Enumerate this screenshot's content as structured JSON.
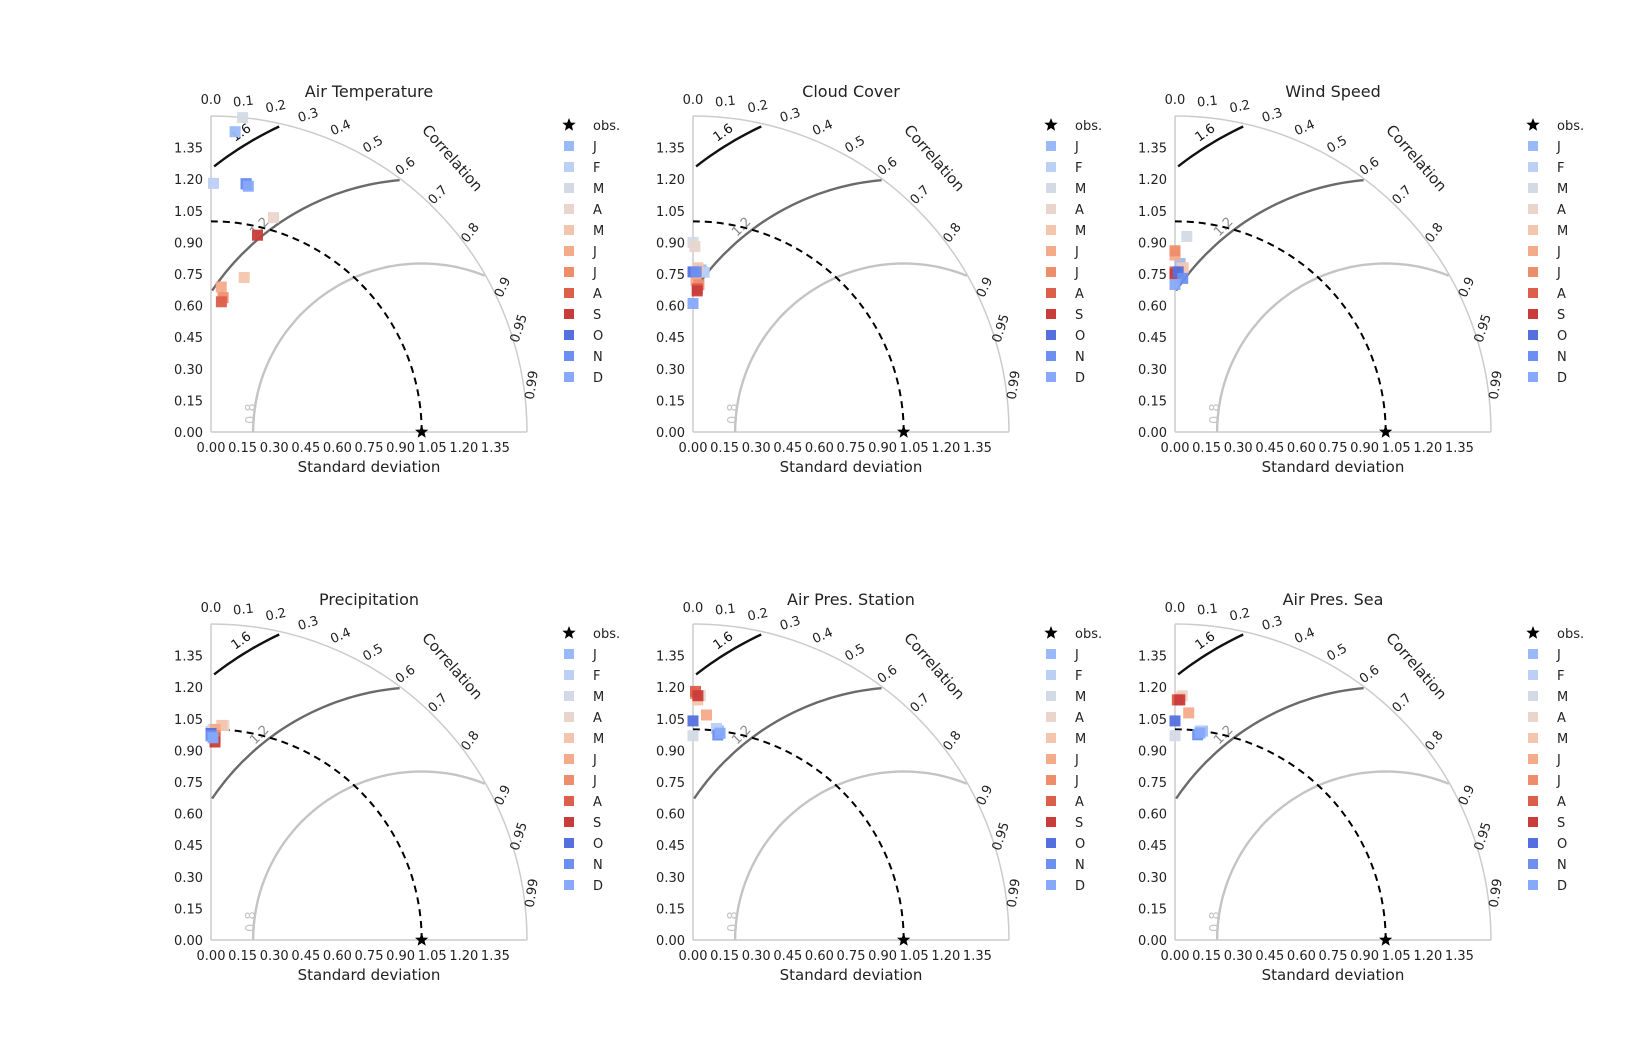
{
  "figure": {
    "axis_xlabel": "Standard deviation",
    "correlation_label": "Correlation",
    "std_ticks": [
      "0.00",
      "0.15",
      "0.30",
      "0.45",
      "0.60",
      "0.75",
      "0.90",
      "1.05",
      "1.20",
      "1.35"
    ],
    "correlation_ticks": [
      "0.0",
      "0.1",
      "0.2",
      "0.3",
      "0.4",
      "0.5",
      "0.6",
      "0.7",
      "0.8",
      "0.9",
      "0.95",
      "0.99"
    ],
    "rms_contour_labels": [
      "0.8",
      "1.2",
      "1.6"
    ],
    "legend": [
      {
        "label": "obs.",
        "marker": "star",
        "color": "#000000"
      },
      {
        "label": "J",
        "marker": "square",
        "color": "#9ab9f8"
      },
      {
        "label": "F",
        "marker": "square",
        "color": "#bcd0f5"
      },
      {
        "label": "M",
        "marker": "square",
        "color": "#d4dae5"
      },
      {
        "label": "A",
        "marker": "square",
        "color": "#ead5cc"
      },
      {
        "label": "M",
        "marker": "square",
        "color": "#f4c5ad"
      },
      {
        "label": "J",
        "marker": "square",
        "color": "#f4ab8a"
      },
      {
        "label": "J",
        "marker": "square",
        "color": "#ed8d6c"
      },
      {
        "label": "A",
        "marker": "square",
        "color": "#dc5f4b"
      },
      {
        "label": "S",
        "marker": "square",
        "color": "#c93c3a"
      },
      {
        "label": "O",
        "marker": "square",
        "color": "#5470de"
      },
      {
        "label": "N",
        "marker": "square",
        "color": "#6c8ff1"
      },
      {
        "label": "D",
        "marker": "square",
        "color": "#86a9fb"
      }
    ]
  },
  "chart_data": [
    {
      "type": "scatter",
      "subtype": "taylor_diagram",
      "title": "Air Temperature",
      "xlabel": "Standard deviation",
      "obs_std": 1.0,
      "std_range": [
        0,
        1.5
      ],
      "series": [
        {
          "name": "J",
          "std": 1.43,
          "corr": 0.08
        },
        {
          "name": "F",
          "std": 1.18,
          "corr": 0.01
        },
        {
          "name": "M",
          "std": 1.5,
          "corr": 0.1
        },
        {
          "name": "A",
          "std": 1.06,
          "corr": 0.28
        },
        {
          "name": "M",
          "std": 0.75,
          "corr": 0.21
        },
        {
          "name": "J",
          "std": 0.69,
          "corr": 0.07
        },
        {
          "name": "J",
          "std": 0.64,
          "corr": 0.09
        },
        {
          "name": "A",
          "std": 0.62,
          "corr": 0.08
        },
        {
          "name": "S",
          "std": 0.96,
          "corr": 0.23
        },
        {
          "name": "O",
          "std": 1.19,
          "corr": 0.14
        },
        {
          "name": "N",
          "std": 1.19,
          "corr": 0.14
        },
        {
          "name": "D",
          "std": 1.18,
          "corr": 0.15
        }
      ]
    },
    {
      "type": "scatter",
      "subtype": "taylor_diagram",
      "title": "Cloud Cover",
      "xlabel": "Standard deviation",
      "obs_std": 1.0,
      "std_range": [
        0,
        1.5
      ],
      "series": [
        {
          "name": "J",
          "std": 0.77,
          "corr": 0.05
        },
        {
          "name": "F",
          "std": 0.76,
          "corr": 0.07
        },
        {
          "name": "M",
          "std": 0.9,
          "corr": 0.0
        },
        {
          "name": "A",
          "std": 0.88,
          "corr": 0.01
        },
        {
          "name": "M",
          "std": 0.78,
          "corr": 0.03
        },
        {
          "name": "J",
          "std": 0.72,
          "corr": 0.02
        },
        {
          "name": "J",
          "std": 0.7,
          "corr": 0.04
        },
        {
          "name": "A",
          "std": 0.68,
          "corr": 0.03
        },
        {
          "name": "S",
          "std": 0.67,
          "corr": 0.03
        },
        {
          "name": "O",
          "std": 0.76,
          "corr": 0.0
        },
        {
          "name": "N",
          "std": 0.76,
          "corr": 0.02
        },
        {
          "name": "D",
          "std": 0.61,
          "corr": 0.0
        }
      ]
    },
    {
      "type": "scatter",
      "subtype": "taylor_diagram",
      "title": "Wind Speed",
      "xlabel": "Standard deviation",
      "obs_std": 1.0,
      "std_range": [
        0,
        1.5
      ],
      "series": [
        {
          "name": "J",
          "std": 0.8,
          "corr": 0.03
        },
        {
          "name": "F",
          "std": 0.78,
          "corr": 0.04
        },
        {
          "name": "M",
          "std": 0.93,
          "corr": 0.06
        },
        {
          "name": "A",
          "std": 0.84,
          "corr": 0.0
        },
        {
          "name": "M",
          "std": 0.78,
          "corr": 0.05
        },
        {
          "name": "J",
          "std": 0.84,
          "corr": 0.0
        },
        {
          "name": "J",
          "std": 0.86,
          "corr": 0.0
        },
        {
          "name": "A",
          "std": 0.76,
          "corr": 0.0
        },
        {
          "name": "S",
          "std": 0.75,
          "corr": 0.0
        },
        {
          "name": "O",
          "std": 0.76,
          "corr": 0.02
        },
        {
          "name": "N",
          "std": 0.73,
          "corr": 0.05
        },
        {
          "name": "D",
          "std": 0.7,
          "corr": 0.0
        }
      ]
    },
    {
      "type": "scatter",
      "subtype": "taylor_diagram",
      "title": "Precipitation",
      "xlabel": "Standard deviation",
      "obs_std": 1.0,
      "std_range": [
        0,
        1.5
      ],
      "series": [
        {
          "name": "J",
          "std": 0.98,
          "corr": 0.01
        },
        {
          "name": "F",
          "std": 0.99,
          "corr": 0.0
        },
        {
          "name": "M",
          "std": 1.0,
          "corr": 0.01
        },
        {
          "name": "A",
          "std": 1.02,
          "corr": 0.06
        },
        {
          "name": "M",
          "std": 1.02,
          "corr": 0.05
        },
        {
          "name": "J",
          "std": 1.0,
          "corr": 0.02
        },
        {
          "name": "J",
          "std": 0.97,
          "corr": 0.02
        },
        {
          "name": "A",
          "std": 0.96,
          "corr": 0.02
        },
        {
          "name": "S",
          "std": 0.94,
          "corr": 0.02
        },
        {
          "name": "O",
          "std": 0.98,
          "corr": 0.0
        },
        {
          "name": "N",
          "std": 0.97,
          "corr": 0.0
        },
        {
          "name": "D",
          "std": 0.96,
          "corr": 0.01
        }
      ]
    },
    {
      "type": "scatter",
      "subtype": "taylor_diagram",
      "title": "Air Pres. Station",
      "xlabel": "Standard deviation",
      "obs_std": 1.0,
      "std_range": [
        0,
        1.5
      ],
      "series": [
        {
          "name": "J",
          "std": 1.0,
          "corr": 0.12
        },
        {
          "name": "F",
          "std": 1.01,
          "corr": 0.11
        },
        {
          "name": "M",
          "std": 0.97,
          "corr": 0.0
        },
        {
          "name": "A",
          "std": 1.16,
          "corr": 0.03
        },
        {
          "name": "M",
          "std": 1.14,
          "corr": 0.02
        },
        {
          "name": "J",
          "std": 1.07,
          "corr": 0.06
        },
        {
          "name": "J",
          "std": 1.17,
          "corr": 0.01
        },
        {
          "name": "A",
          "std": 1.18,
          "corr": 0.01
        },
        {
          "name": "S",
          "std": 1.16,
          "corr": 0.02
        },
        {
          "name": "O",
          "std": 1.04,
          "corr": 0.0
        },
        {
          "name": "N",
          "std": 0.98,
          "corr": 0.12
        },
        {
          "name": "D",
          "std": 0.99,
          "corr": 0.13
        }
      ]
    },
    {
      "type": "scatter",
      "subtype": "taylor_diagram",
      "title": "Air Pres. Sea",
      "xlabel": "Standard deviation",
      "obs_std": 1.0,
      "std_range": [
        0,
        1.5
      ],
      "series": [
        {
          "name": "J",
          "std": 1.0,
          "corr": 0.13
        },
        {
          "name": "F",
          "std": 1.0,
          "corr": 0.12
        },
        {
          "name": "M",
          "std": 0.97,
          "corr": 0.0
        },
        {
          "name": "A",
          "std": 1.16,
          "corr": 0.03
        },
        {
          "name": "M",
          "std": 1.15,
          "corr": 0.02
        },
        {
          "name": "J",
          "std": 1.08,
          "corr": 0.06
        },
        {
          "name": "J",
          "std": 1.14,
          "corr": 0.01
        },
        {
          "name": "A",
          "std": 1.14,
          "corr": 0.01
        },
        {
          "name": "S",
          "std": 1.14,
          "corr": 0.02
        },
        {
          "name": "O",
          "std": 1.04,
          "corr": 0.0
        },
        {
          "name": "N",
          "std": 0.98,
          "corr": 0.11
        },
        {
          "name": "D",
          "std": 0.99,
          "corr": 0.12
        }
      ]
    }
  ]
}
